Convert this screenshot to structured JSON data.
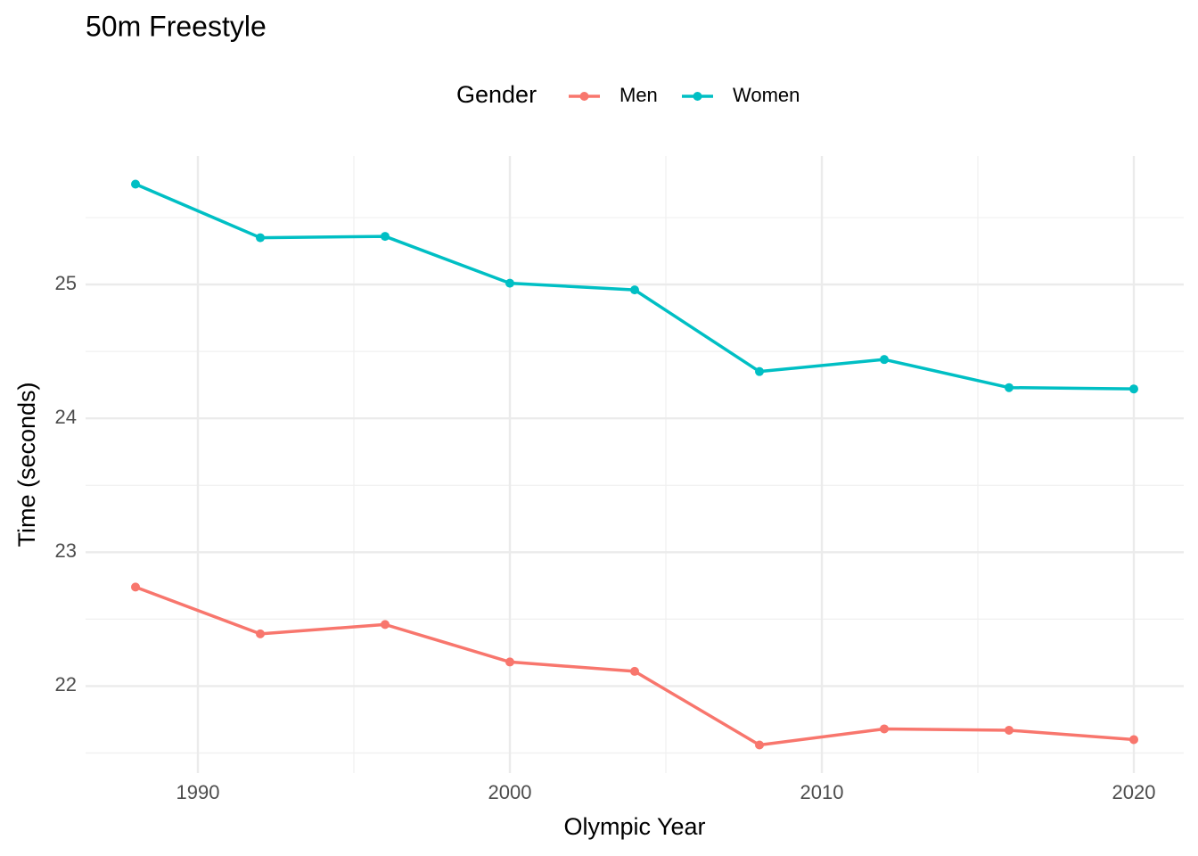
{
  "chart_data": {
    "type": "line",
    "title": "50m Freestyle",
    "x_label": "Olympic Year",
    "y_label": "Time (seconds)",
    "legend_title": "Gender",
    "legend_position": "top",
    "grid": true,
    "x": [
      1988,
      1992,
      1996,
      2000,
      2004,
      2008,
      2012,
      2016,
      2020
    ],
    "series": [
      {
        "name": "Men",
        "color": "#F8766D",
        "values": [
          22.74,
          22.39,
          22.46,
          22.18,
          22.11,
          21.56,
          21.68,
          21.67,
          21.6
        ]
      },
      {
        "name": "Women",
        "color": "#00BFC4",
        "values": [
          25.75,
          25.35,
          25.36,
          25.01,
          24.96,
          24.35,
          24.44,
          24.23,
          24.22
        ]
      }
    ],
    "xlim": [
      1986.4,
      2021.6
    ],
    "xticks": [
      1990,
      2000,
      2010,
      2020
    ],
    "ylim": [
      21.35,
      25.96
    ],
    "yticks": [
      22,
      23,
      24,
      25
    ]
  }
}
